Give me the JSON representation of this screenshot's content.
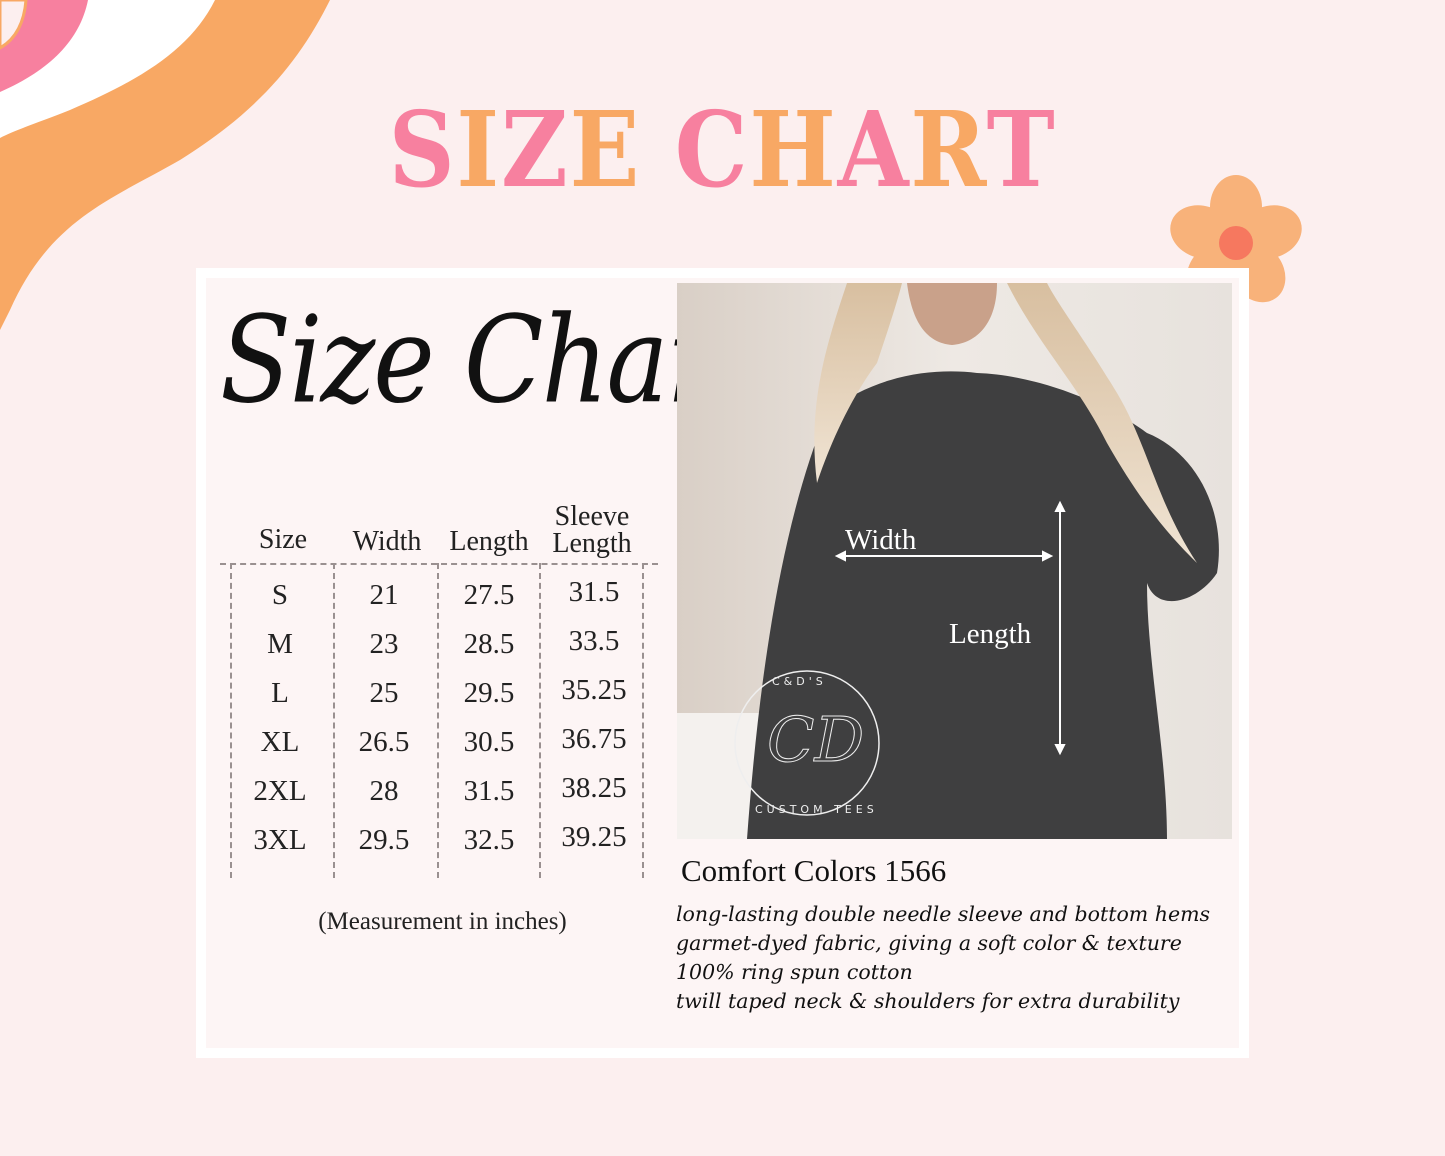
{
  "colors": {
    "pink": "#f7809f",
    "orange": "#f8a864",
    "background": "#fcefef",
    "shirt": "#3f3f40"
  },
  "title": {
    "letters": [
      "S",
      "I",
      "Z",
      "E",
      " ",
      "C",
      "H",
      "A",
      "R",
      "T"
    ]
  },
  "script_title": "Size Chart",
  "table": {
    "headers": [
      "Size",
      "Width",
      "Length",
      "Sleeve Length"
    ],
    "header_lines": {
      "sleeve_top": "Sleeve",
      "sleeve_bottom": "Length"
    },
    "rows": [
      [
        "S",
        "21",
        "27.5",
        "31.5"
      ],
      [
        "M",
        "23",
        "28.5",
        "33.5"
      ],
      [
        "L",
        "25",
        "29.5",
        "35.25"
      ],
      [
        "XL",
        "26.5",
        "30.5",
        "36.75"
      ],
      [
        "2XL",
        "28",
        "31.5",
        "38.25"
      ],
      [
        "3XL",
        "29.5",
        "32.5",
        "39.25"
      ]
    ],
    "note": "(Measurement in inches)"
  },
  "photo": {
    "width_label": "Width",
    "length_label": "Length",
    "logo_text": {
      "top": "C&D'S",
      "monogram": "CD",
      "bottom": "CUSTOM TEES"
    }
  },
  "product": {
    "name": "Comfort Colors 1566",
    "features": [
      "long-lasting double needle sleeve and bottom hems",
      "garmet-dyed fabric, giving a soft color & texture",
      "100% ring spun cotton",
      "twill taped neck & shoulders for extra durability"
    ]
  }
}
